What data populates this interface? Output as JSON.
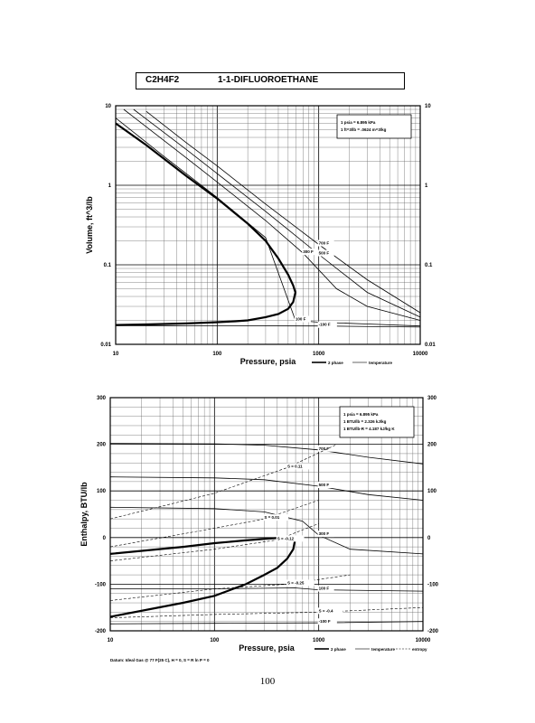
{
  "header": {
    "formula": "C2H4F2",
    "name": "1-1-DIFLUOROETHANE"
  },
  "page_number": "100",
  "chart_data": [
    {
      "type": "line",
      "xlabel": "Pressure,  psia",
      "ylabel": "Volume, ft^3/lb",
      "x_scale": "log",
      "y_scale": "log",
      "xlim": [
        10,
        10000
      ],
      "ylim": [
        0.01,
        10
      ],
      "x_ticks": [
        "10",
        "100",
        "1000",
        "10000"
      ],
      "y_ticks_left": [
        "10",
        "1",
        "0.1",
        "0.01"
      ],
      "y_ticks_right": [
        "10",
        "1",
        "0.1",
        "0.01"
      ],
      "grid": true,
      "note": [
        "1 psia = 6.895 kPa",
        "1 ft^3/lb = .0624 m^3/kg"
      ],
      "legend": [
        "2 phase",
        "temperature"
      ],
      "series": [
        {
          "label": "",
          "style": "dome",
          "x": [
            10,
            20,
            50,
            100,
            200,
            300,
            400,
            500,
            560,
            590,
            560,
            500,
            400,
            300,
            200,
            150,
            100,
            50,
            20,
            10
          ],
          "y": [
            6.0,
            3.2,
            1.3,
            0.68,
            0.33,
            0.2,
            0.12,
            0.075,
            0.055,
            0.045,
            0.034,
            0.028,
            0.024,
            0.022,
            0.02,
            0.0195,
            0.019,
            0.0183,
            0.0178,
            0.0175
          ]
        },
        {
          "label": "700 F",
          "style": "iso",
          "x": [
            20,
            50,
            100,
            300,
            1000,
            3000,
            10000
          ],
          "y": [
            8.5,
            3.4,
            1.75,
            0.58,
            0.18,
            0.065,
            0.025
          ]
        },
        {
          "label": "500 F",
          "style": "iso",
          "x": [
            15,
            50,
            100,
            300,
            1000,
            3000,
            10000
          ],
          "y": [
            9.0,
            2.8,
            1.4,
            0.47,
            0.135,
            0.045,
            0.022
          ]
        },
        {
          "label": "300 F",
          "style": "iso",
          "x": [
            12,
            50,
            100,
            300,
            700,
            1500,
            3000,
            10000
          ],
          "y": [
            9.0,
            2.2,
            1.1,
            0.36,
            0.14,
            0.05,
            0.03,
            0.02
          ]
        },
        {
          "label": "100 F",
          "style": "iso",
          "x": [
            10,
            30,
            100,
            300,
            590,
            1000,
            3000,
            10000
          ],
          "y": [
            7.0,
            2.3,
            0.7,
            0.22,
            0.02,
            0.019,
            0.018,
            0.017
          ]
        },
        {
          "label": "-100 F",
          "style": "iso",
          "x": [
            10,
            100,
            1000,
            10000
          ],
          "y": [
            0.0172,
            0.0171,
            0.017,
            0.0165
          ]
        }
      ],
      "annotations": [
        "700 F",
        "500 F",
        "300 F",
        "100 F",
        "-100 F"
      ]
    },
    {
      "type": "line",
      "xlabel": "Pressure,  psia",
      "ylabel": "Enthalpy, BTU/lb",
      "x_scale": "log",
      "y_scale": "linear",
      "xlim": [
        10,
        10000
      ],
      "ylim": [
        -200,
        300
      ],
      "x_ticks": [
        "10",
        "100",
        "1000",
        "10000"
      ],
      "y_ticks_left": [
        "300",
        "200",
        "100",
        "0",
        "-100",
        "-200"
      ],
      "y_ticks_right": [
        "300",
        "200",
        "100",
        "0",
        "-100",
        "-200"
      ],
      "grid": true,
      "note": [
        "1 psia = 6.895 kPa",
        "1 BTU/lb = 2.326 kJ/kg",
        "1 BTU/lb-R = 4.187 kJ/kg K"
      ],
      "legend": [
        "2 phase",
        "temperature",
        "entropy"
      ],
      "footnote": "Datum: Ideal Gas @ 77 F(25 C),  H = 0,  S = R ln P = 0",
      "series": [
        {
          "label": "",
          "style": "dome",
          "x": [
            10,
            50,
            100,
            200,
            300,
            400,
            500,
            570,
            590,
            570,
            500,
            400,
            300,
            200,
            100,
            50,
            10
          ],
          "y": [
            -35,
            -20,
            -12,
            -6,
            -3,
            -1,
            0,
            -3,
            -8,
            -25,
            -45,
            -65,
            -80,
            -100,
            -125,
            -140,
            -170
          ]
        },
        {
          "label": "700 F",
          "style": "iso",
          "x": [
            10,
            100,
            300,
            1000,
            3000,
            10000
          ],
          "y": [
            202,
            201,
            198,
            188,
            172,
            158
          ]
        },
        {
          "label": "500 F",
          "style": "iso",
          "x": [
            10,
            100,
            300,
            1000,
            3000,
            10000
          ],
          "y": [
            130,
            128,
            124,
            110,
            92,
            80
          ]
        },
        {
          "label": "300 F",
          "style": "iso",
          "x": [
            10,
            100,
            300,
            700,
            1000,
            2000,
            10000
          ],
          "y": [
            65,
            62,
            55,
            35,
            5,
            -25,
            -35
          ]
        },
        {
          "label": "100 F",
          "style": "iso",
          "x": [
            10,
            100,
            590,
            1000,
            10000
          ],
          "y": [
            -110,
            -110,
            -108,
            -112,
            -115
          ]
        },
        {
          "label": "-100 F",
          "style": "iso",
          "x": [
            10,
            100,
            1000,
            10000
          ],
          "y": [
            -185,
            -184,
            -183,
            -180
          ]
        },
        {
          "label": "S = 0.11",
          "style": "entropy",
          "x": [
            10,
            100,
            500,
            1500
          ],
          "y": [
            40,
            95,
            150,
            200
          ]
        },
        {
          "label": "S = 0.01",
          "style": "entropy",
          "x": [
            10,
            100,
            300,
            1000
          ],
          "y": [
            -20,
            20,
            40,
            80
          ]
        },
        {
          "label": "S = -0.12",
          "style": "entropy",
          "x": [
            10,
            100,
            400,
            1000
          ],
          "y": [
            -50,
            -25,
            -5,
            30
          ]
        },
        {
          "label": "S = -0.25",
          "style": "entropy",
          "x": [
            10,
            100,
            500,
            2000
          ],
          "y": [
            -135,
            -110,
            -100,
            -80
          ]
        },
        {
          "label": "S = -0.4",
          "style": "entropy",
          "x": [
            10,
            100,
            1000,
            10000
          ],
          "y": [
            -172,
            -165,
            -160,
            -150
          ]
        }
      ],
      "annotations": [
        "700 F",
        "500 F",
        "300 F",
        "100 F",
        "-100 F",
        "S = 0.11",
        "S = 0.01",
        "S = -0.12",
        "S = -0.25",
        "S = -0.4"
      ]
    }
  ]
}
